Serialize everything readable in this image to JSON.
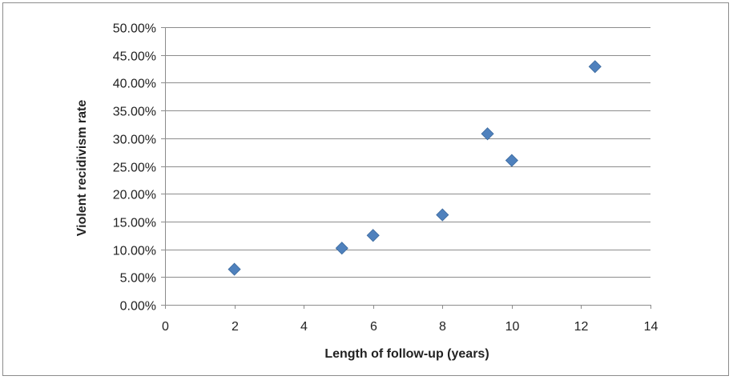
{
  "chart_data": {
    "type": "scatter",
    "title": "",
    "xlabel": "Length of follow-up (years)",
    "ylabel": "Violent recidivism rate",
    "xlim": [
      0,
      14
    ],
    "ylim": [
      0,
      50
    ],
    "x_ticks": [
      0,
      2,
      4,
      6,
      8,
      10,
      12,
      14
    ],
    "x_tick_labels": [
      "0",
      "2",
      "4",
      "6",
      "8",
      "10",
      "12",
      "14"
    ],
    "y_ticks": [
      0,
      5,
      10,
      15,
      20,
      25,
      30,
      35,
      40,
      45,
      50
    ],
    "y_tick_labels": [
      "0.00%",
      "5.00%",
      "10.00%",
      "15.00%",
      "20.00%",
      "25.00%",
      "30.00%",
      "35.00%",
      "40.00%",
      "45.00%",
      "50.00%"
    ],
    "grid": "horizontal",
    "legend": "none",
    "marker": "diamond",
    "series": [
      {
        "points": [
          {
            "x": 2.0,
            "y": 6.4
          },
          {
            "x": 5.1,
            "y": 10.2
          },
          {
            "x": 6.0,
            "y": 12.5
          },
          {
            "x": 8.0,
            "y": 16.2
          },
          {
            "x": 9.3,
            "y": 30.8
          },
          {
            "x": 10.0,
            "y": 26.0
          },
          {
            "x": 12.4,
            "y": 42.9
          }
        ]
      }
    ],
    "colors": {
      "marker": "#4f81bd",
      "grid": "#8c8c8c",
      "axis": "#8c8c8c"
    }
  }
}
